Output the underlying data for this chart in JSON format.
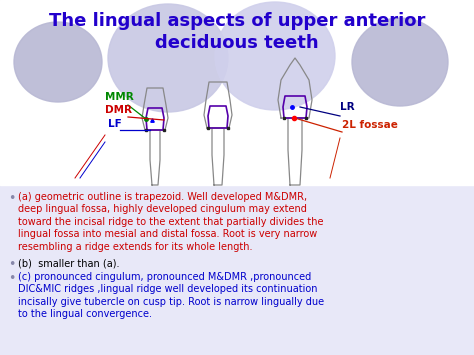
{
  "title_line1": "The lingual aspects of upper anterior",
  "title_line2": "deciduous teeth",
  "title_color": "#2200CC",
  "bg_color": "#e8e8f8",
  "diagram_bg": "#ffffff",
  "circle_specs": [
    [
      58,
      62,
      44,
      40
    ],
    [
      168,
      58,
      60,
      54
    ],
    [
      275,
      56,
      60,
      54
    ],
    [
      400,
      62,
      48,
      44
    ]
  ],
  "circle_colors": [
    "#b8b8d4",
    "#c8c8e4",
    "#d0d0ec",
    "#b8b8d4"
  ],
  "label_MMR": "MMR",
  "label_MMR_color": "#008800",
  "label_DMR": "DMR",
  "label_DMR_color": "#cc0000",
  "label_LF": "LF",
  "label_LF_color": "#0000cc",
  "label_LR": "LR",
  "label_LR_color": "#000080",
  "label_2L": "2L fossae",
  "label_2L_color": "#cc2200",
  "bullet_color": "#8888aa",
  "text_a_color": "#cc0000",
  "text_b_color": "#000000",
  "text_c_color": "#0000cc",
  "text_a": "(a) geometric outline is trapezoid. Well developed M&DMR,\ndeep lingual fossa, highly developed cingulum may extend\ntoward the incisal ridge to the extent that partially divides the\nlingual fossa into mesial and distal fossa. Root is very narrow\nresembling a ridge extends for its whole length.",
  "text_b": "(b)  smaller than (a).",
  "text_c": "(c) pronounced cingulum, pronounced M&DMR ,pronounced\nDIC&MIC ridges ,lingual ridge well developed its continuation\nincisally give tubercle on cusp tip. Root is narrow lingually due\nto the lingual convergence.",
  "tooth_color": "#888888",
  "cingulum_color": "#5500aa",
  "arrow_color_mmr": "#008800",
  "arrow_color_dmr": "#cc0000",
  "arrow_color_lf": "#0000cc",
  "arrow_color_lr": "#000080",
  "arrow_color_2l": "#cc2200"
}
